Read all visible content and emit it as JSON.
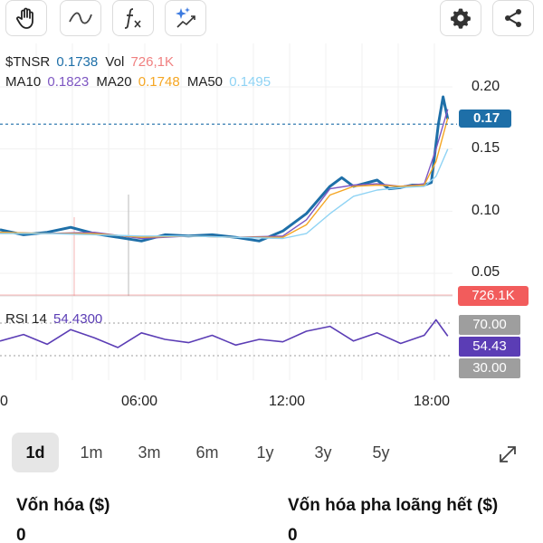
{
  "toolbar": {
    "left_tools": [
      "pan-hand-icon",
      "line-tool-icon",
      "function-icon",
      "ai-sparkle-chart-icon"
    ],
    "right_tools": [
      "gear-icon",
      "share-icon"
    ]
  },
  "legend": {
    "symbol": "$TNSR",
    "price": "0.1738",
    "vol_label": "Vol",
    "vol_value": "726,1K",
    "ma10_label": "MA10",
    "ma10_value": "0.1823",
    "ma20_label": "MA20",
    "ma20_value": "0.1748",
    "ma50_label": "MA50",
    "ma50_value": "0.1495"
  },
  "price_tag": "0.17",
  "volume_tag": "726.1K",
  "rsi": {
    "label": "RSI 14",
    "value": "54.4300",
    "upper_tag": "70.00",
    "current_tag": "54.43",
    "lower_tag": "30.00"
  },
  "colors": {
    "price": "#1e6fa8",
    "volume": "#f25c5c",
    "ma10": "#7e57c2",
    "ma20": "#f5a623",
    "ma50": "#8fd3f4",
    "rsi": "#5b3db5",
    "tag_gray": "#9e9e9e"
  },
  "chart_data": {
    "type": "line",
    "x_ticks": [
      "0",
      "06:00",
      "12:00",
      "18:00"
    ],
    "y_ticks": [
      0.2,
      0.15,
      0.1,
      0.05
    ],
    "ylim": [
      0.05,
      0.2
    ],
    "series": [
      {
        "name": "$TNSR",
        "color": "#1e6fa8",
        "x": [
          0,
          1,
          2,
          3,
          4,
          5,
          6,
          7,
          8,
          9,
          10,
          11,
          12,
          13,
          14,
          14.5,
          15,
          16,
          16.5,
          17,
          17.5,
          18,
          18.3,
          18.6,
          18.8,
          19.0
        ],
        "values": [
          0.085,
          0.081,
          0.083,
          0.087,
          0.082,
          0.079,
          0.076,
          0.081,
          0.08,
          0.081,
          0.079,
          0.076,
          0.084,
          0.098,
          0.12,
          0.127,
          0.12,
          0.125,
          0.118,
          0.119,
          0.121,
          0.121,
          0.123,
          0.17,
          0.192,
          0.174
        ]
      },
      {
        "name": "MA10",
        "color": "#7e57c2",
        "x": [
          0,
          2,
          4,
          6,
          8,
          10,
          12,
          13,
          14,
          15,
          16,
          17,
          18,
          18.5,
          19.0
        ],
        "values": [
          0.083,
          0.082,
          0.083,
          0.078,
          0.08,
          0.079,
          0.08,
          0.093,
          0.118,
          0.121,
          0.122,
          0.12,
          0.122,
          0.15,
          0.182
        ]
      },
      {
        "name": "MA20",
        "color": "#f5a623",
        "x": [
          0,
          2,
          4,
          6,
          8,
          10,
          12,
          13,
          14,
          15,
          16,
          17,
          18,
          18.5,
          19.0
        ],
        "values": [
          0.083,
          0.082,
          0.082,
          0.079,
          0.08,
          0.079,
          0.079,
          0.089,
          0.113,
          0.12,
          0.121,
          0.12,
          0.121,
          0.14,
          0.175
        ]
      },
      {
        "name": "MA50",
        "color": "#8fd3f4",
        "x": [
          0,
          2,
          4,
          6,
          8,
          10,
          12,
          13,
          14,
          15,
          16,
          17,
          18,
          18.5,
          19.0
        ],
        "values": [
          0.082,
          0.082,
          0.081,
          0.08,
          0.08,
          0.079,
          0.078,
          0.082,
          0.098,
          0.112,
          0.117,
          0.119,
          0.12,
          0.128,
          0.15
        ]
      },
      {
        "name": "RSI 14",
        "color": "#5b3db5",
        "x": [
          0,
          1,
          2,
          3,
          4,
          5,
          6,
          7,
          8,
          9,
          10,
          11,
          12,
          13,
          14,
          15,
          16,
          17,
          18,
          18.5,
          19.0
        ],
        "values": [
          48,
          56,
          44,
          62,
          52,
          40,
          58,
          50,
          46,
          55,
          43,
          50,
          47,
          60,
          66,
          48,
          58,
          45,
          55,
          74,
          54
        ]
      }
    ],
    "rsi_levels": [
      70,
      30
    ]
  },
  "ranges": [
    "1d",
    "1m",
    "3m",
    "6m",
    "1y",
    "3y",
    "5y"
  ],
  "active_range": "1d",
  "stats": {
    "market_cap_label": "Vốn hóa ($)",
    "market_cap_value": "0",
    "fdv_label": "Vốn hóa pha loãng hết ($)",
    "fdv_value": "0"
  }
}
